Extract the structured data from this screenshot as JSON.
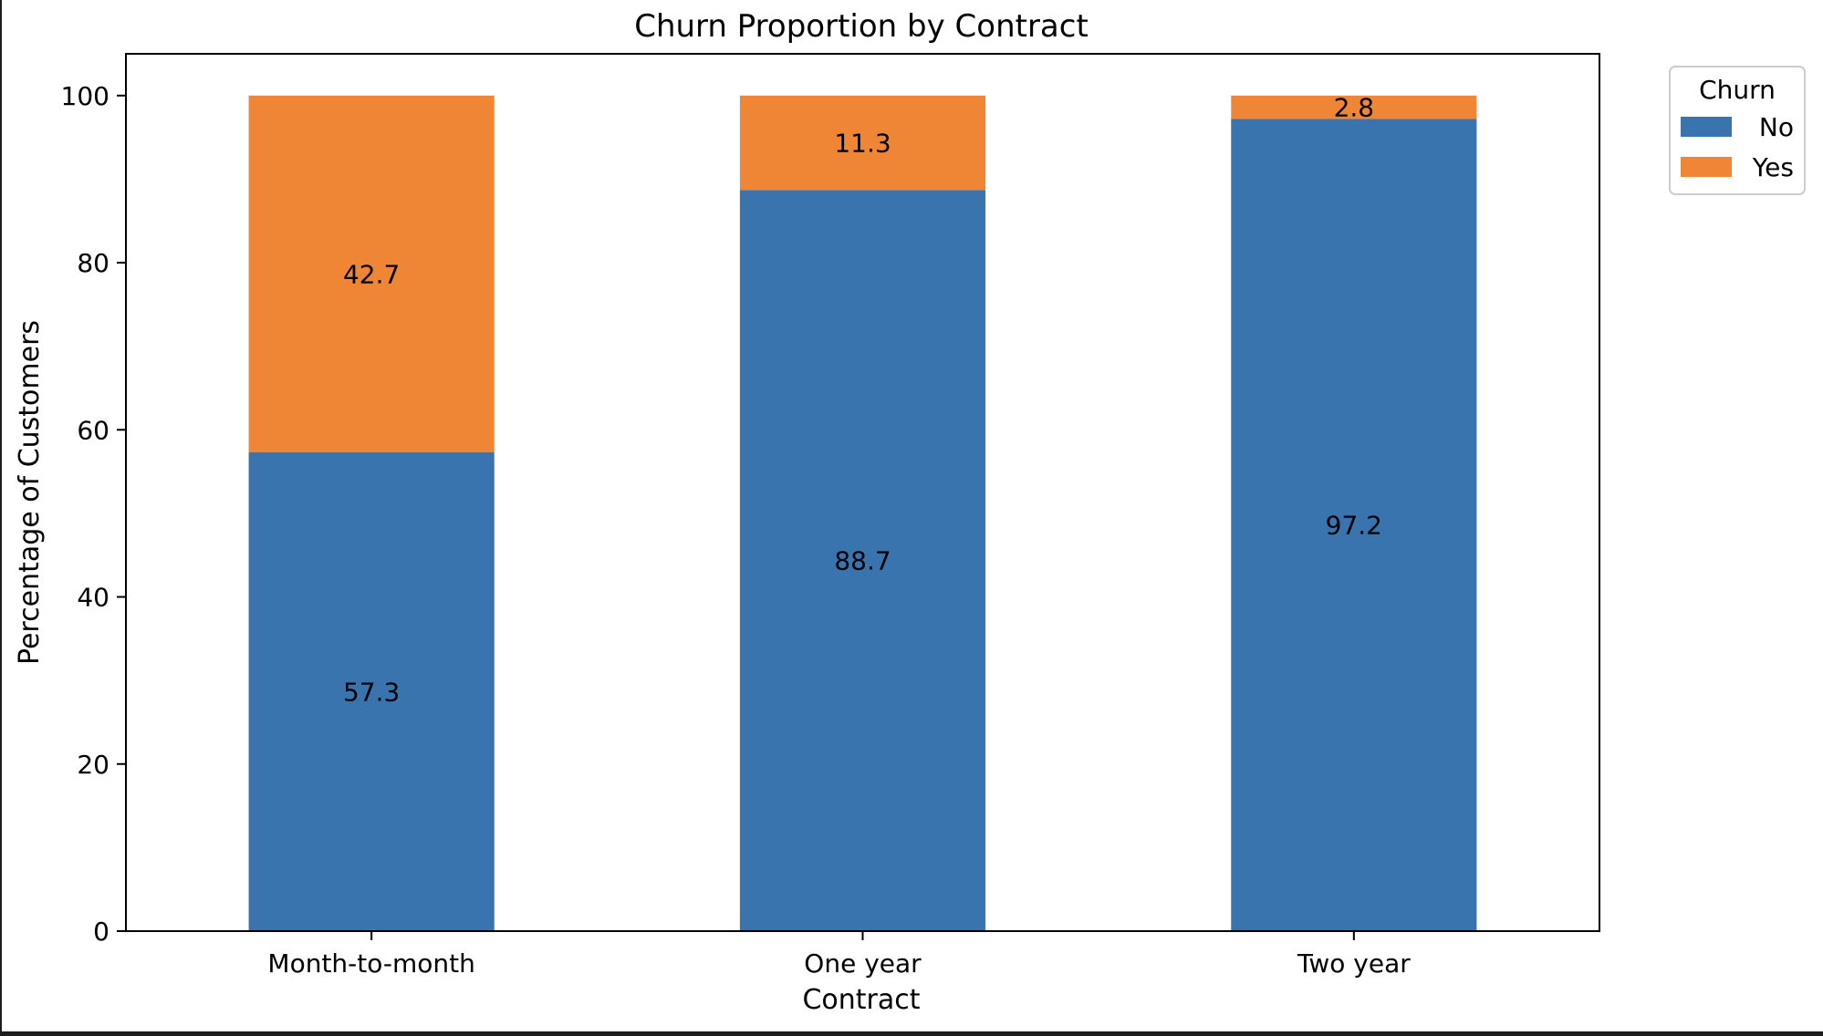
{
  "chart_data": {
    "type": "bar",
    "stacked": true,
    "title": "Churn Proportion by Contract",
    "xlabel": "Contract",
    "ylabel": "Percentage of Customers",
    "categories": [
      "Month-to-month",
      "One year",
      "Two year"
    ],
    "series": [
      {
        "name": "No",
        "values": [
          57.3,
          88.7,
          97.2
        ],
        "color": "#3a74ae"
      },
      {
        "name": "Yes",
        "values": [
          42.7,
          11.3,
          2.8
        ],
        "color": "#ef8636"
      }
    ],
    "data_labels": [
      [
        "57.3",
        "88.7",
        "97.2"
      ],
      [
        "42.7",
        "11.3",
        "2.8"
      ]
    ],
    "ylim": [
      0,
      105
    ],
    "yticks": [
      0,
      20,
      40,
      60,
      80,
      100
    ],
    "grid": false,
    "legend": {
      "title": "Churn",
      "placement": "outside-top-right"
    }
  }
}
